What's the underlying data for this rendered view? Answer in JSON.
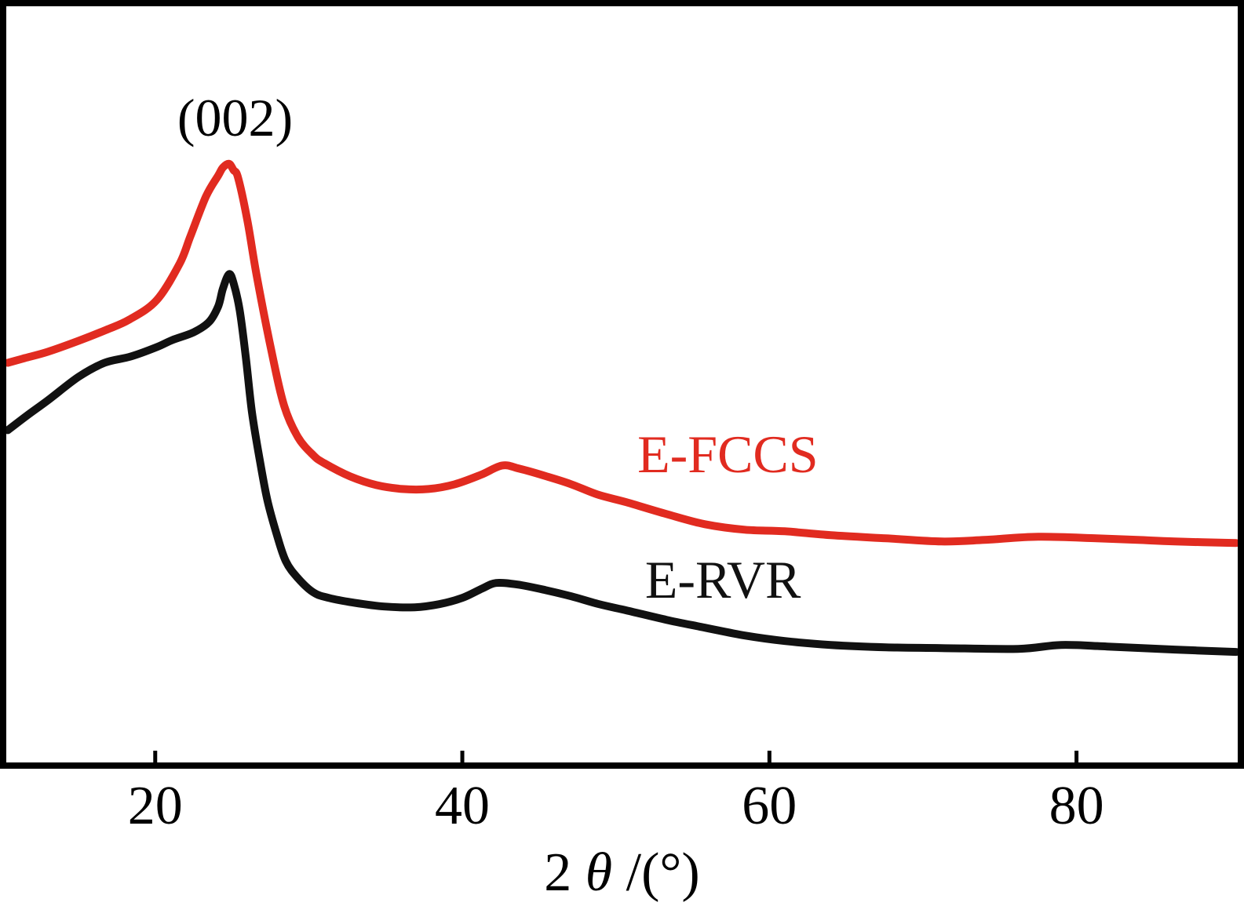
{
  "chart_data": {
    "type": "line",
    "title": "",
    "xlabel": "2 θ /(°)",
    "xlabel_parts": [
      "2 ",
      "θ",
      " /(°)"
    ],
    "ylabel": "",
    "x_ticks": [
      20,
      40,
      60,
      80
    ],
    "x_tick_labels": [
      "20",
      "40",
      "60",
      "80"
    ],
    "xlim": [
      10.3,
      90.5
    ],
    "ylim": [
      0,
      965
    ],
    "grid": false,
    "legend_position": "inline-text-labels",
    "annotations": [
      {
        "text": "(002)",
        "x": 25.2,
        "y": 857
      }
    ],
    "series": [
      {
        "name": "E-FCCS",
        "color": "#e12b20",
        "label_pos": {
          "x": 51.4,
          "y": 427
        },
        "points": [
          [
            10.4,
            510
          ],
          [
            11.5,
            516
          ],
          [
            13.0,
            524
          ],
          [
            15.0,
            538
          ],
          [
            16.8,
            552
          ],
          [
            18.3,
            565
          ],
          [
            20.1,
            590
          ],
          [
            21.6,
            637
          ],
          [
            22.3,
            672
          ],
          [
            23.3,
            722
          ],
          [
            24.1,
            749
          ],
          [
            24.4,
            759
          ],
          [
            24.8,
            764
          ],
          [
            25.1,
            756
          ],
          [
            25.4,
            746
          ],
          [
            26.0,
            692
          ],
          [
            26.6,
            622
          ],
          [
            27.6,
            522
          ],
          [
            28.4,
            455
          ],
          [
            29.3,
            415
          ],
          [
            30.3,
            392
          ],
          [
            31.0,
            382
          ],
          [
            32.7,
            365
          ],
          [
            34.4,
            354
          ],
          [
            36.1,
            349
          ],
          [
            37.8,
            349
          ],
          [
            39.5,
            355
          ],
          [
            41.2,
            367
          ],
          [
            42.6,
            379
          ],
          [
            43.7,
            375
          ],
          [
            45.5,
            365
          ],
          [
            47.1,
            355
          ],
          [
            48.8,
            342
          ],
          [
            50.7,
            332
          ],
          [
            53.3,
            317
          ],
          [
            55.8,
            304
          ],
          [
            58.4,
            297
          ],
          [
            61.0,
            295
          ],
          [
            64.0,
            290
          ],
          [
            67.6,
            286
          ],
          [
            71.2,
            282
          ],
          [
            74.0,
            284
          ],
          [
            77.5,
            288
          ],
          [
            81.3,
            286
          ],
          [
            84.0,
            284
          ],
          [
            86.4,
            282
          ],
          [
            90.4,
            280
          ]
        ]
      },
      {
        "name": "E-RVR",
        "color": "#111111",
        "label_pos": {
          "x": 51.9,
          "y": 267
        },
        "points": [
          [
            10.4,
            424
          ],
          [
            11.6,
            442
          ],
          [
            13.0,
            462
          ],
          [
            15.0,
            492
          ],
          [
            16.7,
            510
          ],
          [
            18.4,
            518
          ],
          [
            20.1,
            530
          ],
          [
            21.1,
            539
          ],
          [
            22.5,
            549
          ],
          [
            23.5,
            562
          ],
          [
            24.1,
            582
          ],
          [
            24.4,
            604
          ],
          [
            24.8,
            623
          ],
          [
            25.1,
            612
          ],
          [
            25.5,
            577
          ],
          [
            25.9,
            517
          ],
          [
            26.3,
            447
          ],
          [
            26.8,
            387
          ],
          [
            27.3,
            335
          ],
          [
            27.9,
            292
          ],
          [
            28.5,
            257
          ],
          [
            29.3,
            235
          ],
          [
            30.3,
            217
          ],
          [
            31.3,
            210
          ],
          [
            32.9,
            204
          ],
          [
            34.9,
            199
          ],
          [
            36.9,
            198
          ],
          [
            38.5,
            202
          ],
          [
            40.0,
            210
          ],
          [
            41.3,
            222
          ],
          [
            42.2,
            229
          ],
          [
            43.6,
            227
          ],
          [
            45.4,
            220
          ],
          [
            47.1,
            212
          ],
          [
            48.9,
            202
          ],
          [
            50.7,
            194
          ],
          [
            53.3,
            182
          ],
          [
            55.8,
            172
          ],
          [
            58.4,
            162
          ],
          [
            61.0,
            155
          ],
          [
            64.0,
            150
          ],
          [
            67.6,
            147
          ],
          [
            71.2,
            146
          ],
          [
            76.2,
            145
          ],
          [
            79.0,
            150
          ],
          [
            82.0,
            148
          ],
          [
            86.4,
            144
          ],
          [
            90.4,
            141
          ]
        ]
      }
    ]
  }
}
